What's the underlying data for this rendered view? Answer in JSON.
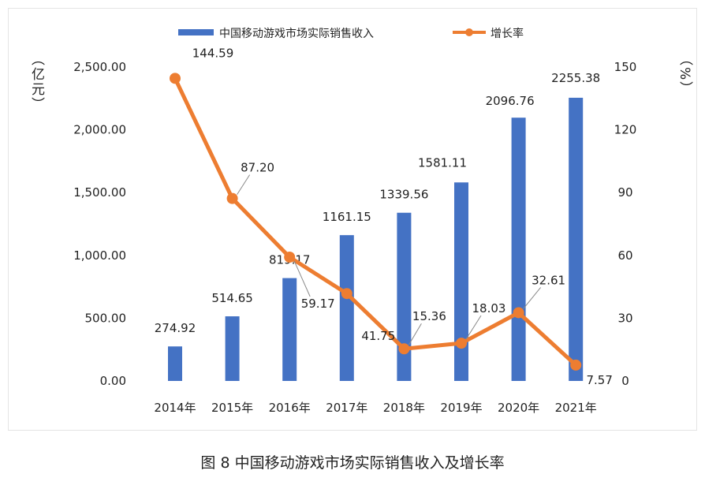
{
  "chart_data": {
    "type": "bar+line",
    "title": "",
    "caption": "图 8 中国移动游戏市场实际销售收入及增长率",
    "categories": [
      "2014年",
      "2015年",
      "2016年",
      "2017年",
      "2018年",
      "2019年",
      "2020年",
      "2021年"
    ],
    "series": [
      {
        "name": "中国移动游戏市场实际销售收入",
        "type": "bar",
        "axis": "left",
        "color": "#4472C4",
        "values": [
          274.92,
          514.65,
          819.17,
          1161.15,
          1339.56,
          1581.11,
          2096.76,
          2255.38
        ],
        "labels": [
          "274.92",
          "514.65",
          "819.17",
          "1161.15",
          "1339.56",
          "1581.11",
          "2096.76",
          "2255.38"
        ]
      },
      {
        "name": "增长率",
        "type": "line",
        "axis": "right",
        "color": "#ED7D31",
        "values": [
          144.59,
          87.2,
          59.17,
          41.75,
          15.36,
          18.03,
          32.61,
          7.57
        ],
        "labels": [
          "144.59",
          "87.20",
          "59.17",
          "41.75",
          "15.36",
          "18.03",
          "32.61",
          "7.57"
        ]
      }
    ],
    "left_axis": {
      "label": "（亿元）",
      "range": [
        0,
        2500
      ],
      "ticks": [
        "0.00",
        "500.00",
        "1,000.00",
        "1,500.00",
        "2,000.00",
        "2,500.00"
      ]
    },
    "right_axis": {
      "label": "（%）",
      "range": [
        0,
        150
      ],
      "ticks": [
        "0",
        "30",
        "60",
        "90",
        "120",
        "150"
      ]
    },
    "grid": false,
    "legend": "top"
  }
}
